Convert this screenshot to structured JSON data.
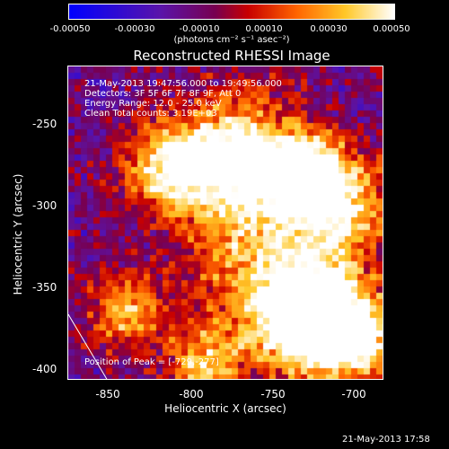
{
  "colorbar": {
    "ticks": [
      "-0.00050",
      "-0.00030",
      "-0.00010",
      "0.00010",
      "0.00030",
      "0.00050"
    ],
    "unit": "(photons cm⁻² s⁻¹ asec⁻²)"
  },
  "title": "Reconstructed RHESSI Image",
  "annotations": {
    "time_range": "21-May-2013 19:47:56.000 to 19:49:56.000",
    "detectors": "Detectors: 3F 5F 6F 7F 8F 9F, Att 0",
    "energy": "Energy Range: 12.0 - 25.0 keV",
    "method": "Clean    Total counts: 3.19E+03",
    "peak": "Position of Peak = [-729,-277]"
  },
  "axes": {
    "xlabel": "Heliocentric X (arcsec)",
    "ylabel": "Heliocentric Y (arcsec)",
    "xticks": [
      "-850",
      "-800",
      "-750",
      "-700"
    ],
    "yticks": [
      "-250",
      "-300",
      "-350",
      "-400"
    ],
    "xrange": [
      -875,
      -680
    ],
    "yrange": [
      -410,
      -218
    ]
  },
  "timestamp": "21-May-2013 17:58",
  "colors": {
    "background": "#000000",
    "foreground": "#ffffff"
  }
}
